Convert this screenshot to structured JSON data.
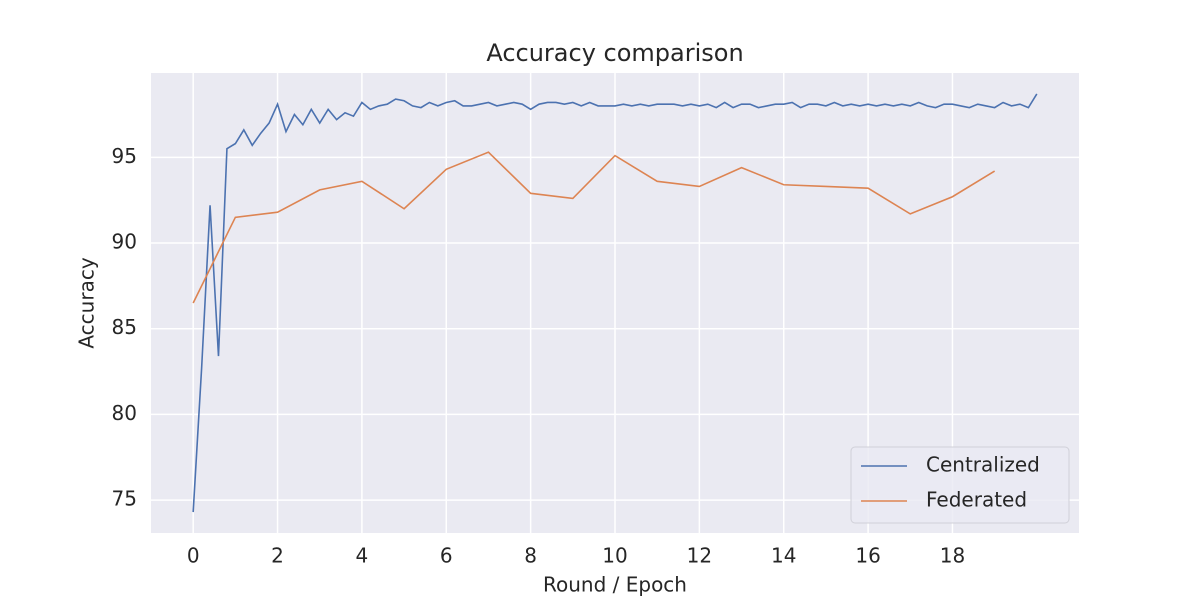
{
  "chart_data": {
    "type": "line",
    "title": "Accuracy comparison",
    "x_label": "Round / Epoch",
    "y_label": "Accuracy",
    "xlim": [
      -1,
      21
    ],
    "ylim": [
      73.08,
      99.92
    ],
    "xticks": [
      0,
      2,
      4,
      6,
      8,
      10,
      12,
      14,
      16,
      18
    ],
    "yticks": [
      75,
      80,
      85,
      90,
      95
    ],
    "grid": true,
    "legend": "lower right",
    "series": [
      {
        "name": "Centralized",
        "color": "#4c72b0",
        "x": [
          0,
          0.2,
          0.4,
          0.6,
          0.8,
          1,
          1.2,
          1.4,
          1.6,
          1.8,
          2,
          2.2,
          2.4,
          2.6,
          2.8,
          3,
          3.2,
          3.4,
          3.6,
          3.8,
          4,
          4.2,
          4.4,
          4.6,
          4.8,
          5,
          5.2,
          5.4,
          5.6,
          5.8,
          6,
          6.2,
          6.4,
          6.6,
          6.8,
          7,
          7.2,
          7.4,
          7.6,
          7.8,
          8,
          8.2,
          8.4,
          8.6,
          8.8,
          9,
          9.2,
          9.4,
          9.6,
          9.8,
          10,
          10.2,
          10.4,
          10.6,
          10.8,
          11,
          11.2,
          11.4,
          11.6,
          11.8,
          12,
          12.2,
          12.4,
          12.6,
          12.8,
          13,
          13.2,
          13.4,
          13.6,
          13.8,
          14,
          14.2,
          14.4,
          14.6,
          14.8,
          15,
          15.2,
          15.4,
          15.6,
          15.8,
          16,
          16.2,
          16.4,
          16.6,
          16.8,
          17,
          17.2,
          17.4,
          17.6,
          17.8,
          18,
          18.2,
          18.4,
          18.6,
          18.8,
          19,
          19.2,
          19.4,
          19.6,
          19.8,
          20
        ],
        "values": [
          74.3,
          82.7,
          92.2,
          83.4,
          95.5,
          95.8,
          96.6,
          95.7,
          96.4,
          97.0,
          98.1,
          96.5,
          97.5,
          96.9,
          97.8,
          97.0,
          97.8,
          97.2,
          97.6,
          97.4,
          98.2,
          97.8,
          98.0,
          98.1,
          98.4,
          98.3,
          98.0,
          97.9,
          98.2,
          98.0,
          98.2,
          98.3,
          98.0,
          98.0,
          98.1,
          98.2,
          98.0,
          98.1,
          98.2,
          98.1,
          97.8,
          98.1,
          98.2,
          98.2,
          98.1,
          98.2,
          98.0,
          98.2,
          98.0,
          98.0,
          98.0,
          98.1,
          98.0,
          98.1,
          98.0,
          98.1,
          98.1,
          98.1,
          98.0,
          98.1,
          98.0,
          98.1,
          97.9,
          98.2,
          97.9,
          98.1,
          98.1,
          97.9,
          98.0,
          98.1,
          98.1,
          98.2,
          97.9,
          98.1,
          98.1,
          98.0,
          98.2,
          98.0,
          98.1,
          98.0,
          98.1,
          98.0,
          98.1,
          98.0,
          98.1,
          98.0,
          98.2,
          98.0,
          97.9,
          98.1,
          98.1,
          98.0,
          97.9,
          98.1,
          98.0,
          97.9,
          98.2,
          98.0,
          98.1,
          97.9,
          98.7
        ]
      },
      {
        "name": "Federated",
        "color": "#dd8452",
        "x": [
          0,
          1,
          2,
          3,
          4,
          5,
          6,
          7,
          8,
          9,
          10,
          11,
          12,
          13,
          14,
          15,
          16,
          17,
          18,
          19
        ],
        "values": [
          86.5,
          91.5,
          91.8,
          93.1,
          93.6,
          92.0,
          94.3,
          95.3,
          92.9,
          92.6,
          95.1,
          93.6,
          93.3,
          94.4,
          93.4,
          93.3,
          93.2,
          91.7,
          92.7,
          94.2
        ]
      }
    ]
  }
}
